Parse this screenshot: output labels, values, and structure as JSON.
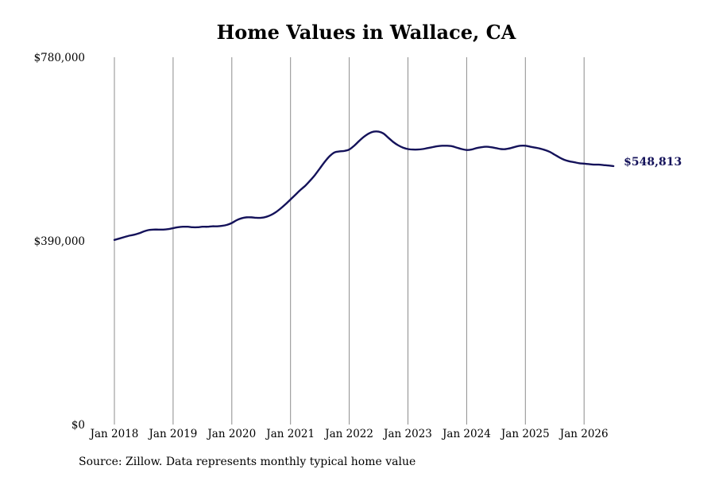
{
  "chart_data": {
    "type": "line",
    "title": "Home Values in Wallace, CA",
    "xlabel": "",
    "ylabel": "",
    "y_ticks": [
      {
        "value": 0,
        "label": "$0"
      },
      {
        "value": 390000,
        "label": "$390,000"
      },
      {
        "value": 780000,
        "label": "$780,000"
      }
    ],
    "ylim": [
      0,
      780000
    ],
    "x_ticks": [
      {
        "date": "2018-01",
        "label": "Jan 2018"
      },
      {
        "date": "2019-01",
        "label": "Jan 2019"
      },
      {
        "date": "2020-01",
        "label": "Jan 2020"
      },
      {
        "date": "2021-01",
        "label": "Jan 2021"
      },
      {
        "date": "2022-01",
        "label": "Jan 2022"
      },
      {
        "date": "2023-01",
        "label": "Jan 2023"
      },
      {
        "date": "2024-01",
        "label": "Jan 2024"
      },
      {
        "date": "2025-01",
        "label": "Jan 2025"
      },
      {
        "date": "2026-01",
        "label": "Jan 2026"
      }
    ],
    "grid": "vertical",
    "series": [
      {
        "color": "#14125a",
        "points": [
          [
            "2018-01",
            392000
          ],
          [
            "2018-02",
            395000
          ],
          [
            "2018-03",
            398000
          ],
          [
            "2018-04",
            401000
          ],
          [
            "2018-05",
            403000
          ],
          [
            "2018-06",
            406000
          ],
          [
            "2018-07",
            410000
          ],
          [
            "2018-08",
            413000
          ],
          [
            "2018-09",
            414000
          ],
          [
            "2018-10",
            414000
          ],
          [
            "2018-11",
            414000
          ],
          [
            "2018-12",
            415000
          ],
          [
            "2019-01",
            417000
          ],
          [
            "2019-02",
            419000
          ],
          [
            "2019-03",
            420000
          ],
          [
            "2019-04",
            420000
          ],
          [
            "2019-05",
            419000
          ],
          [
            "2019-06",
            419000
          ],
          [
            "2019-07",
            420000
          ],
          [
            "2019-08",
            420000
          ],
          [
            "2019-09",
            421000
          ],
          [
            "2019-10",
            421000
          ],
          [
            "2019-11",
            422000
          ],
          [
            "2019-12",
            424000
          ],
          [
            "2020-01",
            428000
          ],
          [
            "2020-02",
            434000
          ],
          [
            "2020-03",
            438000
          ],
          [
            "2020-04",
            440000
          ],
          [
            "2020-05",
            440000
          ],
          [
            "2020-06",
            439000
          ],
          [
            "2020-07",
            439000
          ],
          [
            "2020-08",
            441000
          ],
          [
            "2020-09",
            445000
          ],
          [
            "2020-10",
            451000
          ],
          [
            "2020-11",
            459000
          ],
          [
            "2020-12",
            468000
          ],
          [
            "2021-01",
            478000
          ],
          [
            "2021-02",
            488000
          ],
          [
            "2021-03",
            498000
          ],
          [
            "2021-04",
            507000
          ],
          [
            "2021-05",
            518000
          ],
          [
            "2021-06",
            530000
          ],
          [
            "2021-07",
            544000
          ],
          [
            "2021-08",
            558000
          ],
          [
            "2021-09",
            570000
          ],
          [
            "2021-10",
            578000
          ],
          [
            "2021-11",
            580000
          ],
          [
            "2021-12",
            581000
          ],
          [
            "2022-01",
            584000
          ],
          [
            "2022-02",
            592000
          ],
          [
            "2022-03",
            602000
          ],
          [
            "2022-04",
            611000
          ],
          [
            "2022-05",
            618000
          ],
          [
            "2022-06",
            622000
          ],
          [
            "2022-07",
            622000
          ],
          [
            "2022-08",
            618000
          ],
          [
            "2022-09",
            609000
          ],
          [
            "2022-10",
            600000
          ],
          [
            "2022-11",
            593000
          ],
          [
            "2022-12",
            588000
          ],
          [
            "2023-01",
            585000
          ],
          [
            "2023-02",
            584000
          ],
          [
            "2023-03",
            584000
          ],
          [
            "2023-04",
            585000
          ],
          [
            "2023-05",
            587000
          ],
          [
            "2023-06",
            589000
          ],
          [
            "2023-07",
            591000
          ],
          [
            "2023-08",
            592000
          ],
          [
            "2023-09",
            592000
          ],
          [
            "2023-10",
            591000
          ],
          [
            "2023-11",
            588000
          ],
          [
            "2023-12",
            585000
          ],
          [
            "2024-01",
            583000
          ],
          [
            "2024-02",
            584000
          ],
          [
            "2024-03",
            587000
          ],
          [
            "2024-04",
            589000
          ],
          [
            "2024-05",
            590000
          ],
          [
            "2024-06",
            589000
          ],
          [
            "2024-07",
            587000
          ],
          [
            "2024-08",
            585000
          ],
          [
            "2024-09",
            585000
          ],
          [
            "2024-10",
            587000
          ],
          [
            "2024-11",
            590000
          ],
          [
            "2024-12",
            592000
          ],
          [
            "2025-01",
            592000
          ],
          [
            "2025-02",
            590000
          ],
          [
            "2025-03",
            588000
          ],
          [
            "2025-04",
            586000
          ],
          [
            "2025-05",
            583000
          ],
          [
            "2025-06",
            579000
          ],
          [
            "2025-07",
            573000
          ],
          [
            "2025-08",
            567000
          ],
          [
            "2025-09",
            562000
          ],
          [
            "2025-10",
            559000
          ],
          [
            "2025-11",
            557000
          ],
          [
            "2025-12",
            555000
          ],
          [
            "2026-01",
            554000
          ],
          [
            "2026-02",
            553000
          ],
          [
            "2026-03",
            552000
          ],
          [
            "2026-04",
            552000
          ],
          [
            "2026-05",
            551000
          ],
          [
            "2026-06",
            550000
          ],
          [
            "2026-07",
            548813
          ]
        ]
      }
    ],
    "end_label": "$548,813"
  },
  "source_note": "Source: Zillow. Data represents monthly typical home value"
}
